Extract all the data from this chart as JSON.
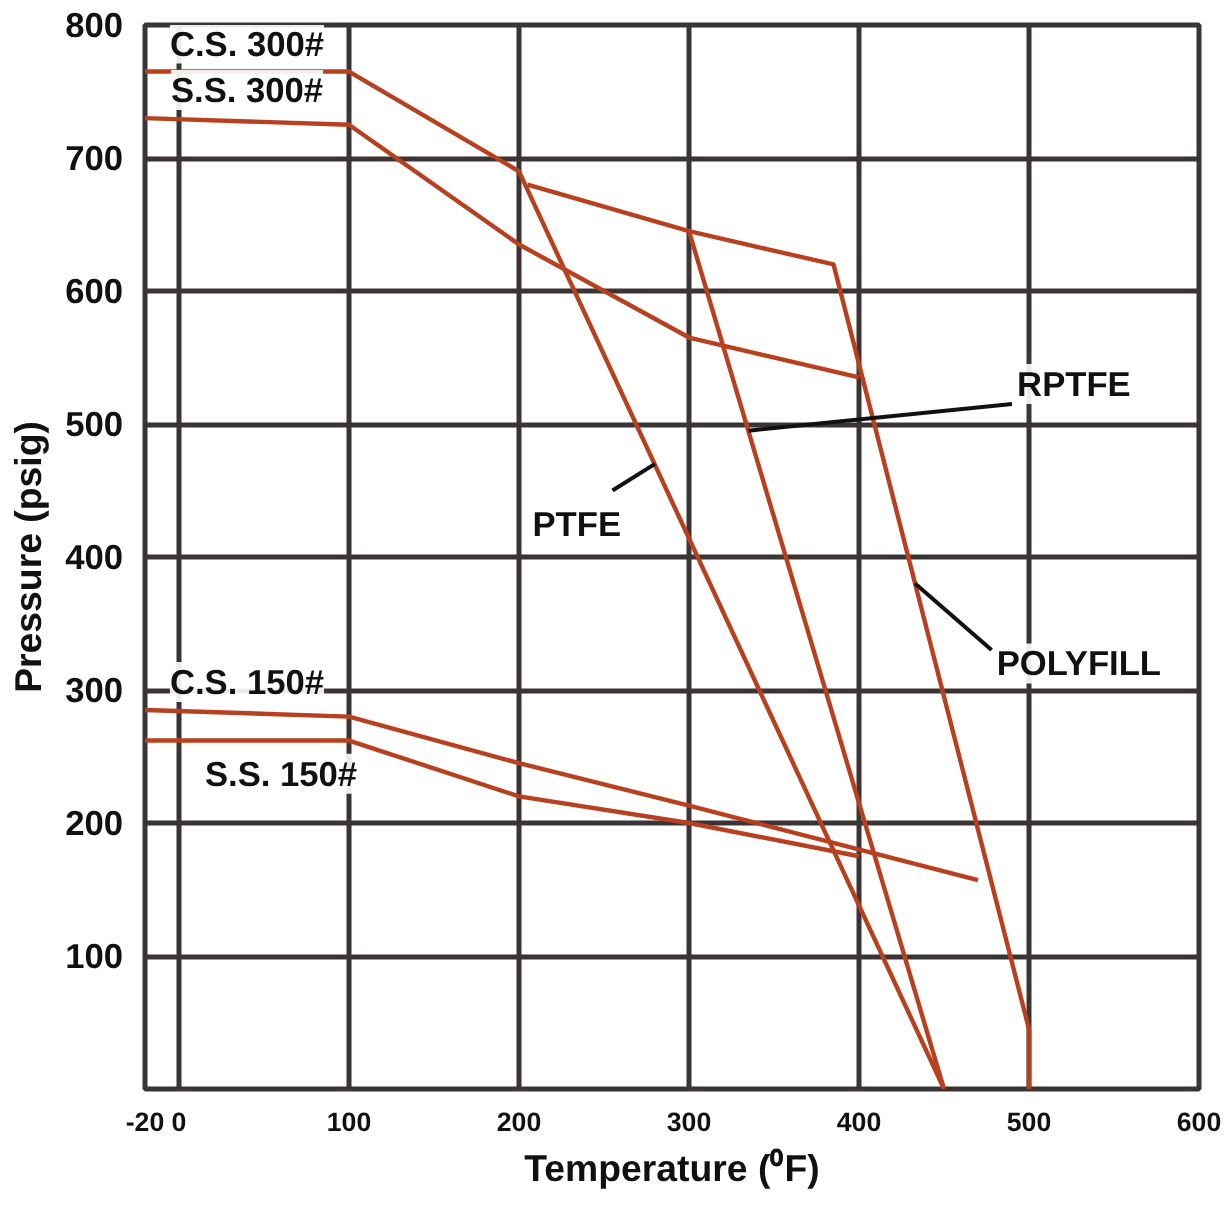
{
  "chart_data": {
    "type": "line",
    "xlabel": "Temperature (⁰F)",
    "ylabel": "Pressure (psig)",
    "xlim": [
      -20,
      600
    ],
    "ylim": [
      0,
      800
    ],
    "xticks": [
      -20,
      0,
      100,
      200,
      300,
      400,
      500,
      600
    ],
    "yticks": [
      100,
      200,
      300,
      400,
      500,
      600,
      700,
      800
    ],
    "grid": true,
    "marker": "none",
    "line_style": "solid",
    "series": [
      {
        "color": "#b8401f",
        "x": [
          -20,
          100,
          200,
          450
        ],
        "values": [
          765,
          765,
          690,
          0
        ]
      },
      {
        "color": "#b8401f",
        "x": [
          -20,
          100,
          200,
          300,
          400
        ],
        "values": [
          730,
          725,
          635,
          565,
          535
        ]
      },
      {
        "color": "#b8401f",
        "x": [
          -20,
          100,
          200,
          300,
          470
        ],
        "values": [
          285,
          280,
          245,
          213,
          157
        ]
      },
      {
        "color": "#b8401f",
        "x": [
          -20,
          100,
          200,
          300,
          400
        ],
        "values": [
          262,
          262,
          220,
          200,
          175
        ]
      },
      {
        "color": "#b8401f",
        "x": [
          205,
          300,
          450
        ],
        "values": [
          680,
          645,
          0
        ]
      },
      {
        "color": "#b8401f",
        "x": [
          300,
          385,
          500,
          500
        ],
        "values": [
          645,
          620,
          45,
          0
        ]
      }
    ],
    "annotations": [
      {
        "text": "C.S. 300#",
        "x": 40,
        "y": 765
      },
      {
        "text": "S.S. 300#",
        "x": 40,
        "y": 730
      },
      {
        "text": "C.S. 150#",
        "x": 40,
        "y": 285
      },
      {
        "text": "S.S. 150#",
        "x": 60,
        "y": 262
      },
      {
        "text": "PTFE",
        "x": 280,
        "y": 470
      },
      {
        "text": "RPTFE",
        "x": 335,
        "y": 495
      },
      {
        "text": "POLYFILL",
        "x": 433,
        "y": 380
      }
    ]
  }
}
